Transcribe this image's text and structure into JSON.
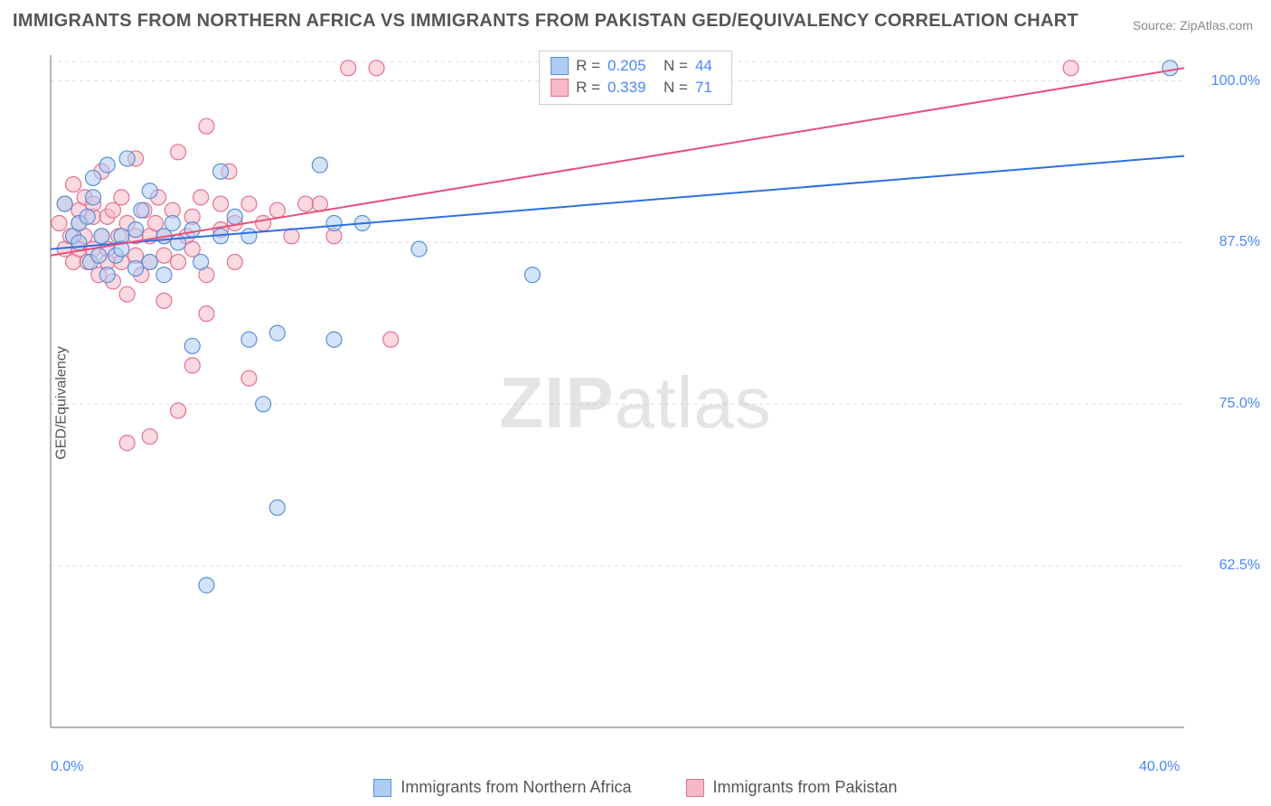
{
  "title": "IMMIGRANTS FROM NORTHERN AFRICA VS IMMIGRANTS FROM PAKISTAN GED/EQUIVALENCY CORRELATION CHART",
  "source_prefix": "Source: ",
  "source_name": "ZipAtlas.com",
  "watermark_a": "ZIP",
  "watermark_b": "atlas",
  "y_axis_label": "GED/Equivalency",
  "chart": {
    "type": "scatter",
    "xlim": [
      0.0,
      40.0
    ],
    "ylim": [
      50.0,
      102.0
    ],
    "x_ticks": [
      {
        "v": 0.0,
        "label": "0.0%"
      },
      {
        "v": 40.0,
        "label": "40.0%"
      }
    ],
    "y_ticks": [
      {
        "v": 62.5,
        "label": "62.5%"
      },
      {
        "v": 75.0,
        "label": "75.0%"
      },
      {
        "v": 87.5,
        "label": "87.5%"
      },
      {
        "v": 100.0,
        "label": "100.0%"
      }
    ],
    "grid_color": "#dddddd",
    "axis_color": "#888888",
    "background_color": "#ffffff",
    "marker_radius": 8.5,
    "marker_stroke_width": 1.2,
    "trend_line_width": 2,
    "series": [
      {
        "id": "northern_africa",
        "label": "Immigrants from Northern Africa",
        "fill": "#aeccf4",
        "stroke": "#5b8fd6",
        "fill_opacity": 0.55,
        "R": "0.205",
        "N": "44",
        "trend": {
          "x1": 0.0,
          "y1": 87.0,
          "x2": 40.0,
          "y2": 94.2,
          "color": "#2f6fe0"
        },
        "points": [
          [
            0.5,
            90.5
          ],
          [
            0.8,
            88.0
          ],
          [
            1.0,
            87.5
          ],
          [
            1.0,
            89.0
          ],
          [
            1.3,
            89.5
          ],
          [
            1.4,
            86.0
          ],
          [
            1.5,
            91.0
          ],
          [
            1.5,
            92.5
          ],
          [
            1.7,
            86.5
          ],
          [
            1.8,
            88.0
          ],
          [
            2.0,
            93.5
          ],
          [
            2.0,
            85.0
          ],
          [
            2.3,
            86.5
          ],
          [
            2.5,
            88.0
          ],
          [
            2.5,
            87.0
          ],
          [
            2.7,
            94.0
          ],
          [
            3.0,
            88.5
          ],
          [
            3.0,
            85.5
          ],
          [
            3.2,
            90.0
          ],
          [
            3.5,
            91.5
          ],
          [
            3.5,
            86.0
          ],
          [
            4.0,
            88.0
          ],
          [
            4.0,
            85.0
          ],
          [
            4.3,
            89.0
          ],
          [
            4.5,
            87.5
          ],
          [
            5.0,
            88.5
          ],
          [
            5.0,
            79.5
          ],
          [
            5.3,
            86.0
          ],
          [
            5.5,
            61.0
          ],
          [
            6.0,
            88.0
          ],
          [
            6.0,
            93.0
          ],
          [
            6.5,
            89.5
          ],
          [
            7.0,
            88.0
          ],
          [
            7.0,
            80.0
          ],
          [
            7.5,
            75.0
          ],
          [
            8.0,
            80.5
          ],
          [
            8.0,
            67.0
          ],
          [
            9.5,
            93.5
          ],
          [
            10.0,
            89.0
          ],
          [
            10.0,
            80.0
          ],
          [
            11.0,
            89.0
          ],
          [
            13.0,
            87.0
          ],
          [
            17.0,
            85.0
          ],
          [
            39.5,
            101.0
          ]
        ]
      },
      {
        "id": "pakistan",
        "label": "Immigrants from Pakistan",
        "fill": "#f6b9c8",
        "stroke": "#e5718f",
        "fill_opacity": 0.55,
        "R": "0.339",
        "N": "71",
        "trend": {
          "x1": 0.0,
          "y1": 86.5,
          "x2": 40.0,
          "y2": 101.0,
          "color": "#e94f7a"
        },
        "points": [
          [
            0.3,
            89.0
          ],
          [
            0.5,
            90.5
          ],
          [
            0.5,
            87.0
          ],
          [
            0.7,
            88.0
          ],
          [
            0.8,
            92.0
          ],
          [
            0.8,
            86.0
          ],
          [
            1.0,
            89.0
          ],
          [
            1.0,
            90.0
          ],
          [
            1.0,
            87.0
          ],
          [
            1.2,
            91.0
          ],
          [
            1.2,
            88.0
          ],
          [
            1.3,
            86.0
          ],
          [
            1.5,
            89.5
          ],
          [
            1.5,
            87.0
          ],
          [
            1.5,
            90.5
          ],
          [
            1.7,
            85.0
          ],
          [
            1.8,
            88.0
          ],
          [
            1.8,
            93.0
          ],
          [
            2.0,
            87.0
          ],
          [
            2.0,
            89.5
          ],
          [
            2.0,
            86.0
          ],
          [
            2.2,
            90.0
          ],
          [
            2.2,
            84.5
          ],
          [
            2.4,
            88.0
          ],
          [
            2.5,
            91.0
          ],
          [
            2.5,
            86.0
          ],
          [
            2.7,
            89.0
          ],
          [
            2.7,
            72.0
          ],
          [
            2.7,
            83.5
          ],
          [
            3.0,
            86.5
          ],
          [
            3.0,
            88.0
          ],
          [
            3.0,
            94.0
          ],
          [
            3.2,
            85.0
          ],
          [
            3.3,
            90.0
          ],
          [
            3.5,
            88.0
          ],
          [
            3.5,
            72.5
          ],
          [
            3.5,
            86.0
          ],
          [
            3.7,
            89.0
          ],
          [
            3.8,
            91.0
          ],
          [
            4.0,
            86.5
          ],
          [
            4.0,
            88.0
          ],
          [
            4.0,
            83.0
          ],
          [
            4.3,
            90.0
          ],
          [
            4.5,
            94.5
          ],
          [
            4.5,
            86.0
          ],
          [
            4.5,
            74.5
          ],
          [
            4.8,
            88.0
          ],
          [
            5.0,
            89.5
          ],
          [
            5.0,
            78.0
          ],
          [
            5.0,
            87.0
          ],
          [
            5.3,
            91.0
          ],
          [
            5.5,
            85.0
          ],
          [
            5.5,
            96.5
          ],
          [
            5.5,
            82.0
          ],
          [
            6.0,
            88.5
          ],
          [
            6.0,
            90.5
          ],
          [
            6.3,
            93.0
          ],
          [
            6.5,
            89.0
          ],
          [
            6.5,
            86.0
          ],
          [
            7.0,
            77.0
          ],
          [
            7.0,
            90.5
          ],
          [
            7.5,
            89.0
          ],
          [
            8.0,
            90.0
          ],
          [
            8.5,
            88.0
          ],
          [
            9.0,
            90.5
          ],
          [
            9.5,
            90.5
          ],
          [
            10.0,
            88.0
          ],
          [
            10.5,
            101.0
          ],
          [
            11.5,
            101.0
          ],
          [
            12.0,
            80.0
          ],
          [
            36.0,
            101.0
          ]
        ]
      }
    ]
  },
  "legend_top_labels": {
    "R": "R =",
    "N": "N ="
  }
}
